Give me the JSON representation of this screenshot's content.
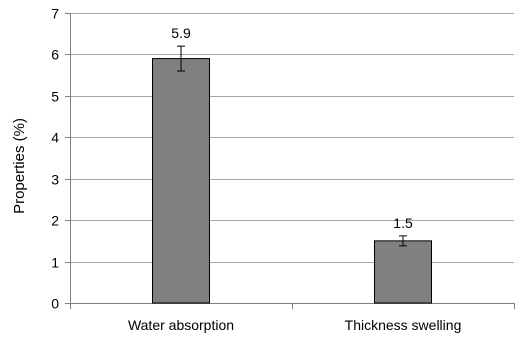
{
  "chart_data": {
    "type": "bar",
    "title": "",
    "xlabel": "",
    "ylabel": "Properties (%)",
    "categories": [
      "Water absorption",
      "Thickness swelling"
    ],
    "values": [
      5.9,
      1.5
    ],
    "data_labels": [
      "5.9",
      "1.5"
    ],
    "error_bars": [
      0.3,
      0.12
    ],
    "ylim": [
      0,
      7
    ],
    "yticks": [
      0,
      1,
      2,
      3,
      4,
      5,
      6,
      7
    ],
    "ytick_labels": [
      "0",
      "1",
      "2",
      "3",
      "4",
      "5",
      "6",
      "7"
    ],
    "grid": true,
    "legend": "none",
    "colors": {
      "bar_fill": "#808080",
      "bar_stroke": "#000000",
      "grid": "#a6a6a6",
      "axis": "#808080",
      "error_bar": "#000000"
    }
  }
}
